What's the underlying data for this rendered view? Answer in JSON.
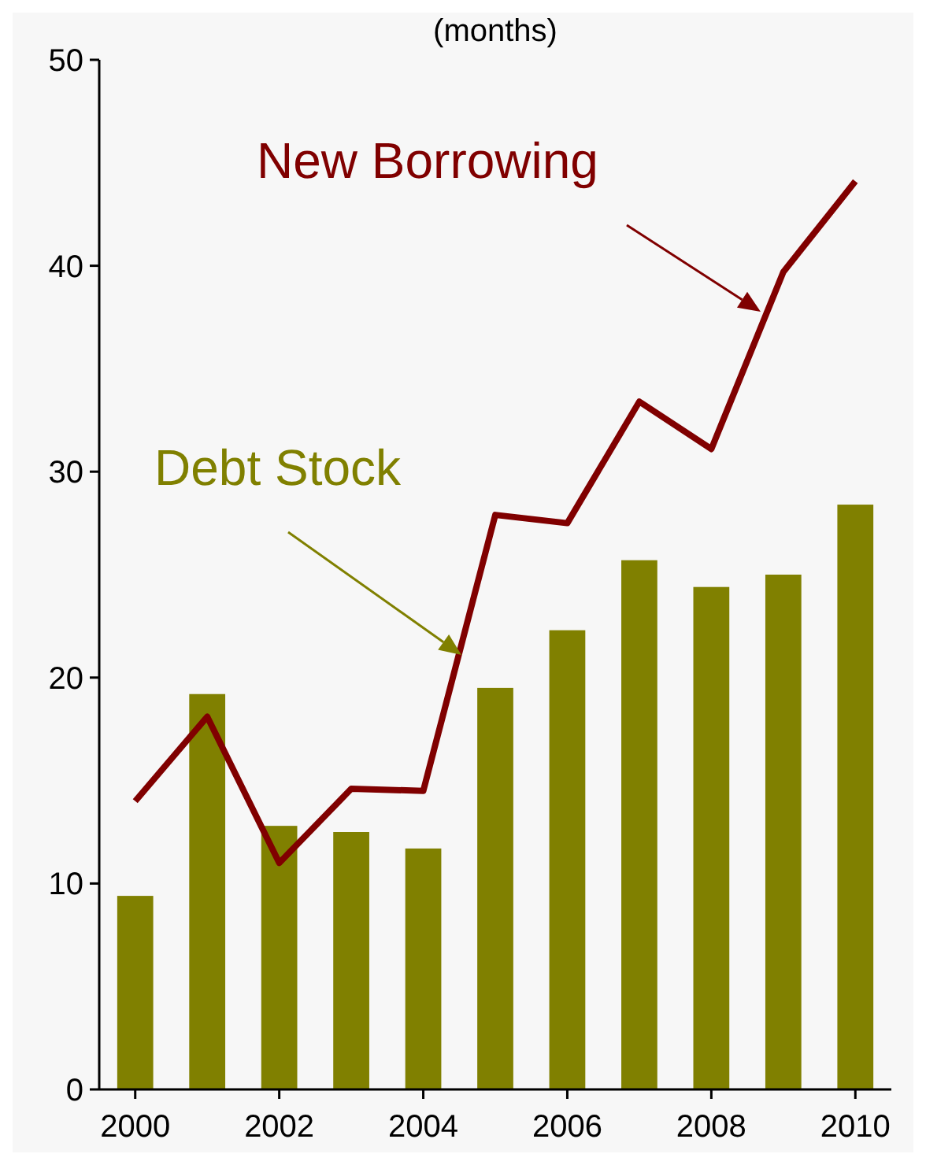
{
  "chart_data": {
    "type": "bar",
    "title": "(months)",
    "x": [
      2000,
      2001,
      2002,
      2003,
      2004,
      2005,
      2006,
      2007,
      2008,
      2009,
      2010
    ],
    "xlim": [
      1999.5,
      2010.5
    ],
    "xticks": [
      2000,
      2002,
      2004,
      2006,
      2008,
      2010
    ],
    "ylim": [
      0,
      50
    ],
    "yticks": [
      0,
      10,
      20,
      30,
      40,
      50
    ],
    "grid": false,
    "series": [
      {
        "name": "Debt Stock",
        "color": "#808000",
        "values": [
          9.4,
          19.2,
          12.8,
          12.5,
          11.7,
          19.5,
          22.3,
          25.7,
          24.4,
          25.0,
          28.4
        ]
      },
      {
        "name": "New Borrowing",
        "type": "line",
        "color": "#800000",
        "values": [
          14.0,
          18.1,
          11.0,
          14.6,
          14.5,
          27.9,
          27.5,
          33.4,
          31.1,
          39.7,
          44.1
        ]
      }
    ]
  }
}
